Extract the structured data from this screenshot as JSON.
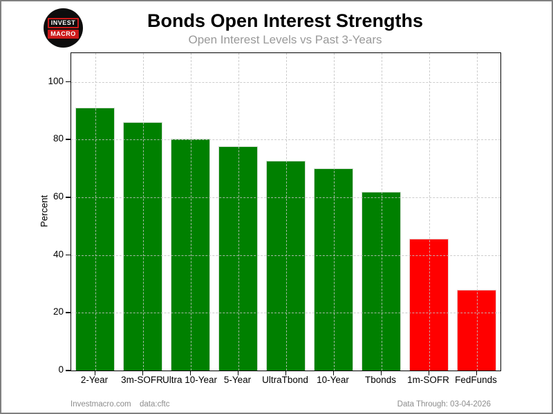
{
  "header": {
    "title": "Bonds Open Interest Strengths",
    "subtitle": "Open Interest Levels vs Past 3-Years",
    "logo": {
      "line1": "INVEST",
      "line2": "MACRO"
    }
  },
  "chart_data": {
    "type": "bar",
    "title": "Bonds Open Interest Strengths",
    "subtitle": "Open Interest Levels vs Past 3-Years",
    "categories": [
      "2-Year",
      "3m-SOFR",
      "Ultra 10-Year",
      "5-Year",
      "UltraTbond",
      "10-Year",
      "Tbonds",
      "1m-SOFR",
      "FedFunds"
    ],
    "values": [
      91.2,
      86.0,
      80.3,
      77.7,
      72.7,
      70.1,
      62.0,
      45.6,
      27.9
    ],
    "bar_colors": [
      "#008000",
      "#008000",
      "#008000",
      "#008000",
      "#008000",
      "#008000",
      "#008000",
      "#ff0000",
      "#ff0000"
    ],
    "xlabel": "",
    "ylabel": "Percent",
    "ylim": [
      0,
      110
    ],
    "yticks": [
      0,
      20,
      40,
      60,
      80,
      100
    ],
    "grid": "dashed-both-axes-over-bars",
    "legend": "none",
    "strong_color": "#008000",
    "weak_color": "#ff0000"
  },
  "footer": {
    "site": "Investmacro.com",
    "source": "data:cftc",
    "data_through": "Data Through: 03-04-2026"
  }
}
